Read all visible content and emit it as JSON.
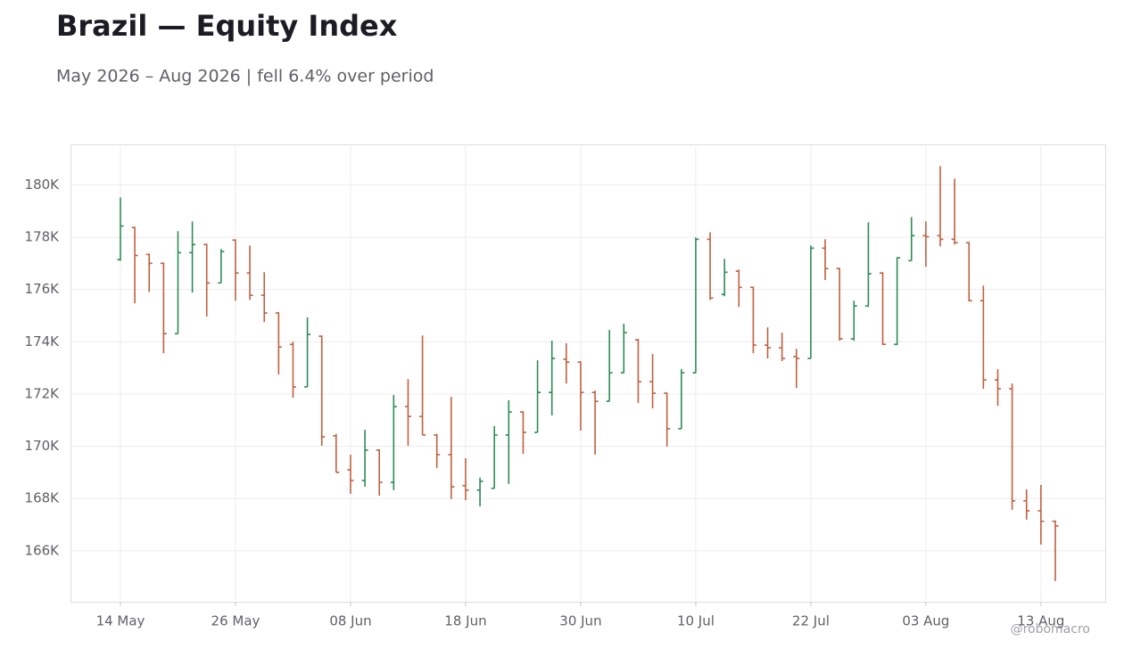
{
  "chart_data": {
    "type": "ohlc",
    "title": "Brazil — Equity Index",
    "subtitle": "May 2026 – Aug 2026 | fell 6.4% over period",
    "watermark": "@robomacro",
    "up_color": "#2e8b57",
    "down_color": "#c0603f",
    "grid": true,
    "categories": [
      "14 May",
      null,
      null,
      null,
      null,
      null,
      null,
      null,
      "26 May",
      null,
      null,
      null,
      null,
      null,
      null,
      null,
      "08 Jun",
      null,
      null,
      null,
      null,
      null,
      null,
      null,
      "18 Jun",
      null,
      null,
      null,
      null,
      null,
      null,
      null,
      "30 Jun",
      null,
      null,
      null,
      null,
      null,
      null,
      null,
      "10 Jul",
      null,
      null,
      null,
      null,
      null,
      null,
      null,
      "22 Jul",
      null,
      null,
      null,
      null,
      null,
      null,
      null,
      "03 Aug",
      null,
      null,
      null,
      null,
      null,
      null,
      null,
      "13 Aug",
      null
    ],
    "open": [
      177140,
      178370,
      177340,
      177000,
      174310,
      177410,
      177720,
      176250,
      177890,
      176630,
      175780,
      175100,
      173900,
      172270,
      174210,
      170400,
      169100,
      168690,
      169850,
      168620,
      171520,
      171140,
      170430,
      169680,
      168490,
      168320,
      168390,
      170430,
      171310,
      170530,
      172060,
      173330,
      173220,
      172060,
      171720,
      172810,
      174070,
      172470,
      172030,
      170670,
      172810,
      177920,
      175810,
      176700,
      176080,
      173870,
      173770,
      173430,
      173360,
      177580,
      176800,
      174110,
      175370,
      176630,
      173900,
      177100,
      178060,
      178060,
      177920,
      177790,
      175570,
      172540,
      172200,
      167910,
      167530,
      167130
    ],
    "high": [
      179520,
      178400,
      177370,
      177030,
      178230,
      178600,
      177750,
      177550,
      177920,
      177680,
      176660,
      175130,
      174000,
      174930,
      174240,
      170470,
      169680,
      170630,
      169880,
      171960,
      172570,
      174240,
      170470,
      171890,
      169540,
      168800,
      170770,
      171760,
      171340,
      173290,
      174040,
      173940,
      173250,
      172130,
      174450,
      174690,
      174110,
      173530,
      172060,
      172950,
      177990,
      178190,
      177170,
      176760,
      176110,
      174550,
      174350,
      173730,
      177680,
      177920,
      176830,
      175570,
      178570,
      176660,
      177240,
      178770,
      178600,
      180720,
      180240,
      177820,
      176150,
      172950,
      172400,
      168350,
      168520,
      167160
    ],
    "low": [
      177100,
      175470,
      175900,
      173560,
      174310,
      175880,
      174960,
      176250,
      175570,
      175600,
      174750,
      172750,
      171860,
      172270,
      170020,
      169000,
      168180,
      168450,
      168110,
      168320,
      170020,
      170430,
      169170,
      167980,
      167940,
      167700,
      168390,
      168560,
      169710,
      170530,
      171180,
      172400,
      170600,
      169680,
      171720,
      172810,
      171660,
      171450,
      169990,
      170670,
      172810,
      175600,
      175740,
      175330,
      173560,
      173360,
      173260,
      172230,
      173360,
      176360,
      174040,
      174040,
      175330,
      173870,
      173870,
      177100,
      176870,
      177650,
      177720,
      175540,
      172200,
      171550,
      167570,
      167190,
      166240,
      164840
    ],
    "close": [
      178430,
      177300,
      177000,
      174310,
      177410,
      177720,
      176250,
      177450,
      176630,
      175780,
      175100,
      173800,
      172270,
      174280,
      170360,
      169000,
      168690,
      169850,
      168620,
      171520,
      171140,
      170430,
      169680,
      168450,
      168320,
      168660,
      170430,
      171310,
      170530,
      172060,
      173360,
      173220,
      172060,
      171720,
      172810,
      174350,
      172470,
      172030,
      170670,
      172810,
      177920,
      175670,
      176660,
      176080,
      173870,
      173770,
      173360,
      173360,
      177580,
      176800,
      174110,
      175370,
      176600,
      173900,
      177210,
      178060,
      178020,
      177920,
      177790,
      175570,
      172540,
      172200,
      167910,
      167530,
      167130,
      166950
    ],
    "ylim": [
      164050,
      181550
    ],
    "yticks": [
      {
        "value": 166000,
        "label": "166K"
      },
      {
        "value": 168000,
        "label": "168K"
      },
      {
        "value": 170000,
        "label": "170K"
      },
      {
        "value": 172000,
        "label": "172K"
      },
      {
        "value": 174000,
        "label": "174K"
      },
      {
        "value": 176000,
        "label": "176K"
      },
      {
        "value": 178000,
        "label": "178K"
      },
      {
        "value": 180000,
        "label": "180K"
      }
    ]
  }
}
